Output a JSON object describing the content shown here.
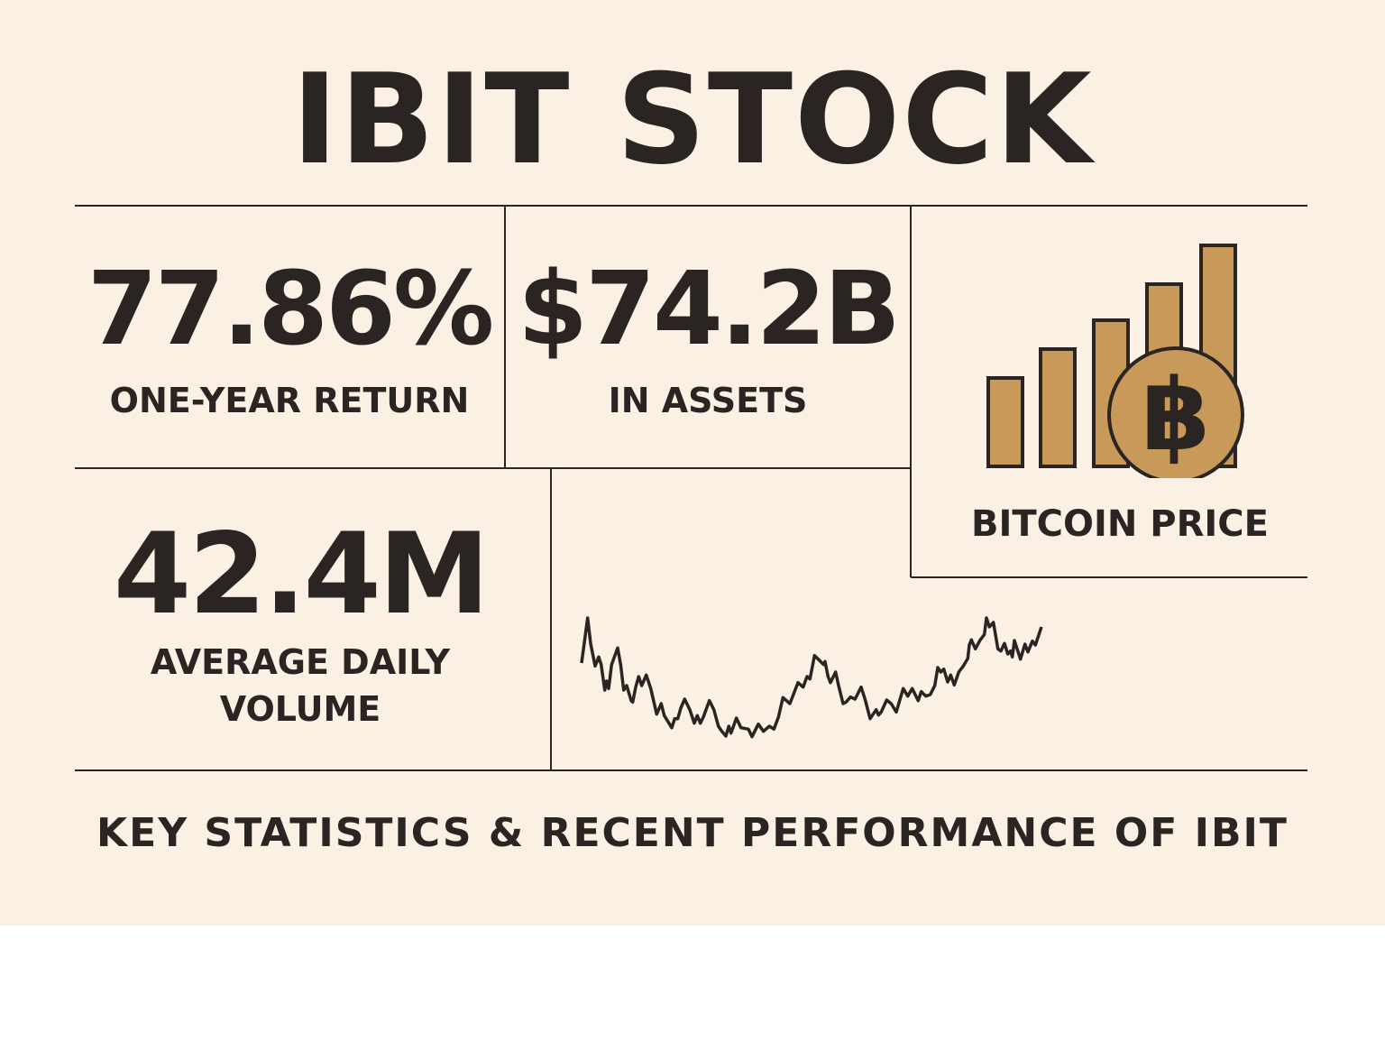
{
  "title": "IBIT STOCK",
  "stats": [
    {
      "value": "77.86%",
      "label": "ONE-YEAR RETURN"
    },
    {
      "value": "$74.2B",
      "label": "IN ASSETS"
    },
    {
      "value": "42.4M",
      "label_line1": "AVERAGE DAILY",
      "label_line2": "VOLUME"
    }
  ],
  "bitcoin_panel": {
    "label": "BITCOIN PRICE",
    "icon": "bitcoin-coin-icon",
    "bar_levels": [
      1,
      1.3,
      1.6,
      2,
      2.4
    ]
  },
  "footer": "KEY STATISTICS & RECENT PERFORMANCE OF IBIT",
  "colors": {
    "background": "#faf1e4",
    "ink": "#2a2422",
    "gold": "#c9995a"
  }
}
